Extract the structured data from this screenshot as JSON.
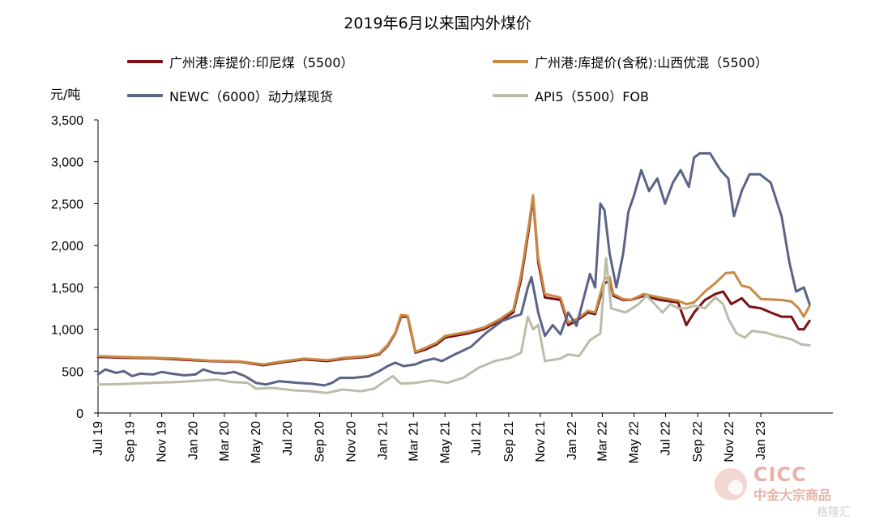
{
  "chart_data": {
    "type": "line",
    "title": "2019年6月以来国内外煤价",
    "ylabel": "元/吨",
    "xlabel": "",
    "ylim": [
      0,
      3500
    ],
    "yticks": [
      0,
      500,
      1000,
      1500,
      2000,
      2500,
      3000,
      3500
    ],
    "ytick_labels": [
      "0",
      "500",
      "1,000",
      "1,500",
      "2,000",
      "2,500",
      "3,000",
      "3,500"
    ],
    "xlim": [
      "2019-07-01",
      "2023-05-20"
    ],
    "xtick_labels": [
      "Jul 19",
      "Sep 19",
      "Nov 19",
      "Jan 20",
      "Mar 20",
      "May 20",
      "Jul 20",
      "Sep 20",
      "Nov 20",
      "Jan 21",
      "Mar 21",
      "May 21",
      "Jul 21",
      "Sep 21",
      "Nov 21",
      "Jan 22",
      "Mar 22",
      "May 22",
      "Jul 22",
      "Sep 22",
      "Nov 22",
      "Jan 23"
    ],
    "xtick_dates": [
      "2019-07-01",
      "2019-09-01",
      "2019-11-01",
      "2020-01-01",
      "2020-03-01",
      "2020-05-01",
      "2020-07-01",
      "2020-09-01",
      "2020-11-01",
      "2021-01-01",
      "2021-03-01",
      "2021-05-01",
      "2021-07-01",
      "2021-09-01",
      "2021-11-01",
      "2022-01-01",
      "2022-03-01",
      "2022-05-01",
      "2022-07-01",
      "2022-09-01",
      "2022-11-01",
      "2023-01-01"
    ],
    "legend": "top",
    "grid": false,
    "series": [
      {
        "name": "广州港:库提价:印尼煤（5500）",
        "color": "#7b0f14",
        "points": [
          [
            "2019-07-01",
            670
          ],
          [
            "2019-08-15",
            660
          ],
          [
            "2019-10-15",
            655
          ],
          [
            "2019-12-01",
            640
          ],
          [
            "2020-02-01",
            620
          ],
          [
            "2020-04-01",
            610
          ],
          [
            "2020-05-15",
            570
          ],
          [
            "2020-06-15",
            600
          ],
          [
            "2020-08-01",
            640
          ],
          [
            "2020-09-15",
            620
          ],
          [
            "2020-10-20",
            650
          ],
          [
            "2020-12-01",
            670
          ],
          [
            "2020-12-25",
            700
          ],
          [
            "2021-01-10",
            800
          ],
          [
            "2021-01-25",
            950
          ],
          [
            "2021-02-05",
            1150
          ],
          [
            "2021-02-18",
            1150
          ],
          [
            "2021-02-25",
            950
          ],
          [
            "2021-03-05",
            720
          ],
          [
            "2021-03-25",
            760
          ],
          [
            "2021-04-15",
            820
          ],
          [
            "2021-05-01",
            900
          ],
          [
            "2021-06-15",
            950
          ],
          [
            "2021-07-15",
            1000
          ],
          [
            "2021-08-15",
            1100
          ],
          [
            "2021-09-10",
            1200
          ],
          [
            "2021-09-25",
            1600
          ],
          [
            "2021-10-10",
            2200
          ],
          [
            "2021-10-18",
            2580
          ],
          [
            "2021-10-28",
            1800
          ],
          [
            "2021-11-10",
            1380
          ],
          [
            "2021-12-10",
            1350
          ],
          [
            "2021-12-25",
            1050
          ],
          [
            "2022-01-10",
            1100
          ],
          [
            "2022-02-01",
            1200
          ],
          [
            "2022-02-15",
            1180
          ],
          [
            "2022-03-05",
            1550
          ],
          [
            "2022-03-15",
            1580
          ],
          [
            "2022-03-22",
            1400
          ],
          [
            "2022-04-10",
            1350
          ],
          [
            "2022-04-25",
            1350
          ],
          [
            "2022-05-20",
            1400
          ],
          [
            "2022-06-20",
            1350
          ],
          [
            "2022-07-25",
            1320
          ],
          [
            "2022-08-10",
            1050
          ],
          [
            "2022-08-25",
            1200
          ],
          [
            "2022-09-15",
            1350
          ],
          [
            "2022-10-05",
            1420
          ],
          [
            "2022-10-20",
            1450
          ],
          [
            "2022-11-05",
            1300
          ],
          [
            "2022-11-25",
            1370
          ],
          [
            "2022-12-10",
            1270
          ],
          [
            "2023-01-01",
            1250
          ],
          [
            "2023-01-20",
            1200
          ],
          [
            "2023-02-10",
            1150
          ],
          [
            "2023-03-01",
            1150
          ],
          [
            "2023-03-15",
            1000
          ],
          [
            "2023-03-25",
            1000
          ],
          [
            "2023-04-05",
            1100
          ]
        ]
      },
      {
        "name": "广州港:库提价(含税):山西优混（5500）",
        "color": "#c98a45",
        "points": [
          [
            "2019-07-01",
            680
          ],
          [
            "2019-08-15",
            670
          ],
          [
            "2019-10-15",
            660
          ],
          [
            "2019-12-01",
            650
          ],
          [
            "2020-02-01",
            625
          ],
          [
            "2020-04-01",
            615
          ],
          [
            "2020-05-15",
            580
          ],
          [
            "2020-06-15",
            610
          ],
          [
            "2020-08-01",
            650
          ],
          [
            "2020-09-15",
            630
          ],
          [
            "2020-10-20",
            660
          ],
          [
            "2020-12-01",
            680
          ],
          [
            "2020-12-25",
            710
          ],
          [
            "2021-01-10",
            810
          ],
          [
            "2021-01-25",
            960
          ],
          [
            "2021-02-05",
            1170
          ],
          [
            "2021-02-18",
            1160
          ],
          [
            "2021-02-25",
            970
          ],
          [
            "2021-03-05",
            730
          ],
          [
            "2021-03-25",
            780
          ],
          [
            "2021-04-15",
            840
          ],
          [
            "2021-05-01",
            920
          ],
          [
            "2021-06-15",
            970
          ],
          [
            "2021-07-15",
            1020
          ],
          [
            "2021-08-15",
            1120
          ],
          [
            "2021-09-10",
            1230
          ],
          [
            "2021-09-25",
            1650
          ],
          [
            "2021-10-10",
            2250
          ],
          [
            "2021-10-18",
            2600
          ],
          [
            "2021-10-28",
            1850
          ],
          [
            "2021-11-10",
            1420
          ],
          [
            "2021-12-10",
            1380
          ],
          [
            "2021-12-25",
            1080
          ],
          [
            "2022-01-10",
            1120
          ],
          [
            "2022-02-01",
            1220
          ],
          [
            "2022-02-15",
            1200
          ],
          [
            "2022-03-05",
            1600
          ],
          [
            "2022-03-15",
            1620
          ],
          [
            "2022-03-22",
            1420
          ],
          [
            "2022-04-10",
            1360
          ],
          [
            "2022-04-25",
            1350
          ],
          [
            "2022-05-20",
            1420
          ],
          [
            "2022-06-20",
            1380
          ],
          [
            "2022-07-25",
            1340
          ],
          [
            "2022-08-10",
            1300
          ],
          [
            "2022-08-25",
            1320
          ],
          [
            "2022-09-15",
            1450
          ],
          [
            "2022-10-05",
            1550
          ],
          [
            "2022-10-25",
            1670
          ],
          [
            "2022-11-10",
            1680
          ],
          [
            "2022-11-25",
            1520
          ],
          [
            "2022-12-10",
            1500
          ],
          [
            "2023-01-01",
            1360
          ],
          [
            "2023-02-10",
            1350
          ],
          [
            "2023-03-01",
            1330
          ],
          [
            "2023-03-15",
            1250
          ],
          [
            "2023-03-25",
            1150
          ],
          [
            "2023-04-05",
            1280
          ]
        ]
      },
      {
        "name": "NEWC（6000）动力煤现货",
        "color": "#5b6387",
        "points": [
          [
            "2019-07-01",
            460
          ],
          [
            "2019-07-15",
            520
          ],
          [
            "2019-08-05",
            480
          ],
          [
            "2019-08-20",
            500
          ],
          [
            "2019-09-05",
            440
          ],
          [
            "2019-09-20",
            470
          ],
          [
            "2019-10-15",
            460
          ],
          [
            "2019-11-01",
            490
          ],
          [
            "2019-11-20",
            470
          ],
          [
            "2019-12-15",
            450
          ],
          [
            "2020-01-05",
            460
          ],
          [
            "2020-01-20",
            520
          ],
          [
            "2020-02-10",
            480
          ],
          [
            "2020-03-01",
            470
          ],
          [
            "2020-03-20",
            490
          ],
          [
            "2020-04-10",
            440
          ],
          [
            "2020-05-01",
            360
          ],
          [
            "2020-05-20",
            340
          ],
          [
            "2020-06-15",
            380
          ],
          [
            "2020-07-20",
            360
          ],
          [
            "2020-08-15",
            350
          ],
          [
            "2020-09-10",
            330
          ],
          [
            "2020-09-25",
            360
          ],
          [
            "2020-10-10",
            420
          ],
          [
            "2020-11-05",
            420
          ],
          [
            "2020-12-05",
            440
          ],
          [
            "2020-12-25",
            500
          ],
          [
            "2021-01-10",
            560
          ],
          [
            "2021-01-25",
            600
          ],
          [
            "2021-02-10",
            560
          ],
          [
            "2021-03-05",
            580
          ],
          [
            "2021-03-20",
            620
          ],
          [
            "2021-04-10",
            650
          ],
          [
            "2021-04-25",
            620
          ],
          [
            "2021-05-20",
            700
          ],
          [
            "2021-06-20",
            790
          ],
          [
            "2021-07-20",
            960
          ],
          [
            "2021-08-20",
            1100
          ],
          [
            "2021-09-10",
            1150
          ],
          [
            "2021-09-25",
            1180
          ],
          [
            "2021-10-08",
            1500
          ],
          [
            "2021-10-15",
            1620
          ],
          [
            "2021-10-28",
            1200
          ],
          [
            "2021-11-10",
            920
          ],
          [
            "2021-11-25",
            1050
          ],
          [
            "2021-12-10",
            940
          ],
          [
            "2021-12-25",
            1200
          ],
          [
            "2022-01-10",
            1040
          ],
          [
            "2022-01-25",
            1400
          ],
          [
            "2022-02-05",
            1660
          ],
          [
            "2022-02-15",
            1500
          ],
          [
            "2022-02-25",
            2500
          ],
          [
            "2022-03-05",
            2420
          ],
          [
            "2022-03-15",
            1900
          ],
          [
            "2022-03-28",
            1500
          ],
          [
            "2022-04-10",
            1900
          ],
          [
            "2022-04-20",
            2400
          ],
          [
            "2022-05-01",
            2600
          ],
          [
            "2022-05-15",
            2900
          ],
          [
            "2022-05-30",
            2650
          ],
          [
            "2022-06-15",
            2800
          ],
          [
            "2022-06-30",
            2500
          ],
          [
            "2022-07-15",
            2750
          ],
          [
            "2022-07-30",
            2900
          ],
          [
            "2022-08-15",
            2700
          ],
          [
            "2022-08-25",
            3050
          ],
          [
            "2022-09-05",
            3100
          ],
          [
            "2022-09-25",
            3100
          ],
          [
            "2022-10-15",
            2900
          ],
          [
            "2022-10-30",
            2800
          ],
          [
            "2022-11-10",
            2350
          ],
          [
            "2022-11-25",
            2650
          ],
          [
            "2022-12-10",
            2850
          ],
          [
            "2022-12-30",
            2850
          ],
          [
            "2023-01-20",
            2750
          ],
          [
            "2023-02-10",
            2350
          ],
          [
            "2023-02-25",
            1800
          ],
          [
            "2023-03-10",
            1450
          ],
          [
            "2023-03-25",
            1500
          ],
          [
            "2023-04-05",
            1300
          ]
        ]
      },
      {
        "name": "API5（5500）FOB",
        "color": "#bcbcaa",
        "points": [
          [
            "2019-07-01",
            340
          ],
          [
            "2019-08-15",
            345
          ],
          [
            "2019-10-15",
            360
          ],
          [
            "2019-12-01",
            370
          ],
          [
            "2020-01-20",
            390
          ],
          [
            "2020-02-15",
            400
          ],
          [
            "2020-03-15",
            370
          ],
          [
            "2020-04-15",
            360
          ],
          [
            "2020-05-01",
            290
          ],
          [
            "2020-06-01",
            300
          ],
          [
            "2020-07-15",
            270
          ],
          [
            "2020-08-15",
            260
          ],
          [
            "2020-09-15",
            240
          ],
          [
            "2020-10-15",
            280
          ],
          [
            "2020-11-20",
            260
          ],
          [
            "2020-12-15",
            290
          ],
          [
            "2021-01-05",
            380
          ],
          [
            "2021-01-20",
            440
          ],
          [
            "2021-02-05",
            350
          ],
          [
            "2021-03-05",
            360
          ],
          [
            "2021-04-05",
            390
          ],
          [
            "2021-05-05",
            360
          ],
          [
            "2021-06-05",
            420
          ],
          [
            "2021-07-05",
            540
          ],
          [
            "2021-08-05",
            620
          ],
          [
            "2021-09-05",
            660
          ],
          [
            "2021-09-25",
            720
          ],
          [
            "2021-10-08",
            1150
          ],
          [
            "2021-10-18",
            1000
          ],
          [
            "2021-10-28",
            1050
          ],
          [
            "2021-11-10",
            620
          ],
          [
            "2021-12-10",
            650
          ],
          [
            "2021-12-25",
            700
          ],
          [
            "2022-01-15",
            680
          ],
          [
            "2022-02-05",
            870
          ],
          [
            "2022-02-25",
            950
          ],
          [
            "2022-03-08",
            1850
          ],
          [
            "2022-03-18",
            1250
          ],
          [
            "2022-04-15",
            1200
          ],
          [
            "2022-05-10",
            1300
          ],
          [
            "2022-05-25",
            1400
          ],
          [
            "2022-06-10",
            1300
          ],
          [
            "2022-06-25",
            1200
          ],
          [
            "2022-07-10",
            1300
          ],
          [
            "2022-07-25",
            1250
          ],
          [
            "2022-08-10",
            1250
          ],
          [
            "2022-08-25",
            1280
          ],
          [
            "2022-09-15",
            1250
          ],
          [
            "2022-10-05",
            1380
          ],
          [
            "2022-10-20",
            1300
          ],
          [
            "2022-11-01",
            1100
          ],
          [
            "2022-11-15",
            950
          ],
          [
            "2022-12-01",
            900
          ],
          [
            "2022-12-15",
            980
          ],
          [
            "2023-01-10",
            960
          ],
          [
            "2023-02-01",
            920
          ],
          [
            "2023-03-01",
            880
          ],
          [
            "2023-03-20",
            820
          ],
          [
            "2023-04-05",
            810
          ]
        ]
      }
    ]
  },
  "watermark": {
    "logo_text": "CICC",
    "brand_text": "中金大宗商品",
    "source_text": "格隆汇"
  }
}
